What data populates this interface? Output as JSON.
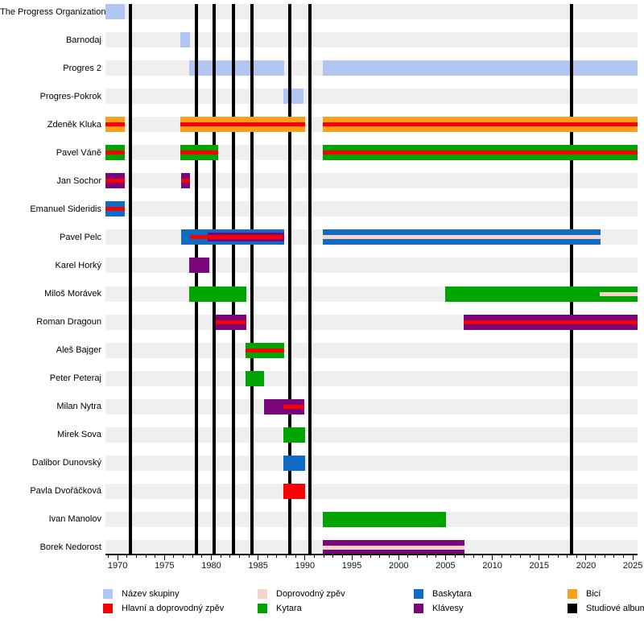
{
  "chart_data": {
    "type": "timeline",
    "description": "Band members timeline (Gantt-style) with studio album release lines",
    "x_axis": {
      "domain_start": 1968.7,
      "domain_end": 2025.5,
      "major_ticks": [
        1970,
        1975,
        1980,
        1985,
        1990,
        1995,
        2000,
        2005,
        2010,
        2015,
        2020,
        2025
      ],
      "minor_tick_step": 1,
      "grid": false
    },
    "roles": {
      "nazev": {
        "label": "Název skupiny",
        "color": "#b1c6f3"
      },
      "zpev": {
        "label": "Hlavní a doprovodný zpěv",
        "color": "#fa0000"
      },
      "dopr": {
        "label": "Doprovodný zpěv",
        "color": "#f8d3cb"
      },
      "kytara": {
        "label": "Kytara",
        "color": "#00a400"
      },
      "baskytara": {
        "label": "Baskytara",
        "color": "#0e6cc4"
      },
      "klavesy": {
        "label": "Klávesy",
        "color": "#7b067b"
      },
      "bici": {
        "label": "Bicí",
        "color": "#fb9e1c"
      },
      "album": {
        "label": "Studiové album",
        "color": "#000000"
      }
    },
    "albums": [
      1971.35,
      1978.4,
      1980.3,
      1982.4,
      1984.3,
      1988.35,
      1990.5,
      2018.45
    ],
    "rows": [
      {
        "label": "The Progress Organization",
        "segments": [
          {
            "role": "nazev",
            "from": 1968.7,
            "to": 1970.75
          }
        ]
      },
      {
        "label": "Barnodaj",
        "segments": [
          {
            "role": "nazev",
            "from": 1976.7,
            "to": 1977.75
          }
        ]
      },
      {
        "label": "Progres 2",
        "segments": [
          {
            "role": "nazev",
            "from": 1977.65,
            "to": 1987.75
          },
          {
            "role": "nazev",
            "from": 1991.9,
            "to": 2025.5
          }
        ]
      },
      {
        "label": "Progres-Pokrok",
        "segments": [
          {
            "role": "nazev",
            "from": 1987.65,
            "to": 1989.8
          }
        ]
      },
      {
        "label": "Zdeněk Kluka",
        "segments": [
          {
            "role": "bici",
            "from": 1968.7,
            "to": 1970.75,
            "stripes": [
              {
                "role": "zpev",
                "from": 1968.7,
                "to": 1970.75,
                "size": "center"
              }
            ]
          },
          {
            "role": "bici",
            "from": 1976.7,
            "to": 1990.0,
            "stripes": [
              {
                "role": "zpev",
                "from": 1976.7,
                "to": 1990.0,
                "size": "center"
              }
            ]
          },
          {
            "role": "bici",
            "from": 1991.9,
            "to": 2025.5,
            "stripes": [
              {
                "role": "zpev",
                "from": 1991.9,
                "to": 2025.5,
                "size": "center"
              }
            ]
          }
        ]
      },
      {
        "label": "Pavel Váně",
        "segments": [
          {
            "role": "kytara",
            "from": 1968.7,
            "to": 1970.75,
            "stripes": [
              {
                "role": "zpev",
                "from": 1968.7,
                "to": 1970.75,
                "size": "center"
              }
            ]
          },
          {
            "role": "kytara",
            "from": 1976.7,
            "to": 1980.7,
            "stripes": [
              {
                "role": "zpev",
                "from": 1976.7,
                "to": 1980.7,
                "size": "center"
              }
            ]
          },
          {
            "role": "kytara",
            "from": 1991.9,
            "to": 2025.5,
            "stripes": [
              {
                "role": "zpev",
                "from": 1991.9,
                "to": 2025.5,
                "size": "center"
              }
            ]
          }
        ]
      },
      {
        "label": "Jan Sochor",
        "segments": [
          {
            "role": "klavesy",
            "from": 1968.7,
            "to": 1970.75,
            "stripes": [
              {
                "role": "zpev",
                "from": 1968.7,
                "to": 1970.75,
                "size": "center"
              }
            ]
          },
          {
            "role": "klavesy",
            "from": 1976.75,
            "to": 1977.75,
            "stripes": [
              {
                "role": "zpev",
                "from": 1976.75,
                "to": 1977.75,
                "size": "center"
              }
            ]
          }
        ]
      },
      {
        "label": "Emanuel Sideridis",
        "segments": [
          {
            "role": "baskytara",
            "from": 1968.7,
            "to": 1970.75,
            "stripes": [
              {
                "role": "zpev",
                "from": 1968.7,
                "to": 1970.75,
                "size": "center"
              }
            ]
          }
        ]
      },
      {
        "label": "Pavel Pelc",
        "segments": [
          {
            "role": "baskytara",
            "from": 1976.75,
            "to": 1987.8,
            "stripes": [
              {
                "role": "klavesy",
                "from": 1979.65,
                "to": 1987.8,
                "size": "mid"
              },
              {
                "role": "zpev",
                "from": 1977.7,
                "to": 1987.6,
                "size": "center"
              }
            ]
          },
          {
            "role": "baskytara",
            "from": 1991.9,
            "to": 2021.55,
            "stripes": [
              {
                "role": "dopr",
                "from": 1991.9,
                "to": 2021.55,
                "size": "center"
              }
            ]
          }
        ]
      },
      {
        "label": "Karel Horký",
        "segments": [
          {
            "role": "klavesy",
            "from": 1977.6,
            "to": 1979.8
          }
        ]
      },
      {
        "label": "Miloš Morávek",
        "segments": [
          {
            "role": "kytara",
            "from": 1977.6,
            "to": 1983.7
          },
          {
            "role": "kytara",
            "from": 2004.95,
            "to": 2025.5,
            "stripes": [
              {
                "role": "dopr",
                "from": 2021.45,
                "to": 2025.5,
                "size": "center"
              }
            ]
          }
        ]
      },
      {
        "label": "Roman Dragoun",
        "segments": [
          {
            "role": "klavesy",
            "from": 1980.45,
            "to": 1983.7,
            "stripes": [
              {
                "role": "zpev",
                "from": 1980.45,
                "to": 1983.7,
                "size": "center"
              }
            ]
          },
          {
            "role": "klavesy",
            "from": 2006.95,
            "to": 2025.5,
            "stripes": [
              {
                "role": "zpev",
                "from": 2006.95,
                "to": 2025.5,
                "size": "center"
              }
            ]
          }
        ]
      },
      {
        "label": "Aleš Bajger",
        "segments": [
          {
            "role": "kytara",
            "from": 1983.65,
            "to": 1987.75,
            "stripes": [
              {
                "role": "zpev",
                "from": 1983.65,
                "to": 1987.75,
                "size": "center"
              }
            ]
          }
        ]
      },
      {
        "label": "Peter Peteraj",
        "segments": [
          {
            "role": "kytara",
            "from": 1983.65,
            "to": 1985.65
          }
        ]
      },
      {
        "label": "Milan Nytra",
        "segments": [
          {
            "role": "klavesy",
            "from": 1985.65,
            "to": 1989.95,
            "stripes": [
              {
                "role": "zpev",
                "from": 1987.65,
                "to": 1989.95,
                "size": "center"
              }
            ]
          }
        ]
      },
      {
        "label": "Mirek Sova",
        "segments": [
          {
            "role": "kytara",
            "from": 1987.7,
            "to": 1990.0
          }
        ]
      },
      {
        "label": "Dalibor Dunovský",
        "segments": [
          {
            "role": "baskytara",
            "from": 1987.7,
            "to": 1990.0
          }
        ]
      },
      {
        "label": "Pavla Dvořáčková",
        "segments": [
          {
            "role": "zpev",
            "from": 1987.7,
            "to": 1990.0
          }
        ]
      },
      {
        "label": "Ivan Manolov",
        "segments": [
          {
            "role": "kytara",
            "from": 1991.9,
            "to": 2005.05
          }
        ]
      },
      {
        "label": "Borek Nedorost",
        "segments": [
          {
            "role": "klavesy",
            "from": 1991.9,
            "to": 2007.0,
            "stripes": [
              {
                "role": "dopr",
                "from": 1991.9,
                "to": 2007.0,
                "size": "center"
              }
            ]
          }
        ]
      }
    ],
    "legend_position": "bottom",
    "legend_columns": [
      [
        "nazev",
        "zpev"
      ],
      [
        "dopr",
        "kytara"
      ],
      [
        "baskytara",
        "klavesy"
      ],
      [
        "bici",
        "album"
      ]
    ]
  },
  "layout_colors": {
    "row_band": "#efefef",
    "background": "#ffffff",
    "axis": "#000000"
  }
}
